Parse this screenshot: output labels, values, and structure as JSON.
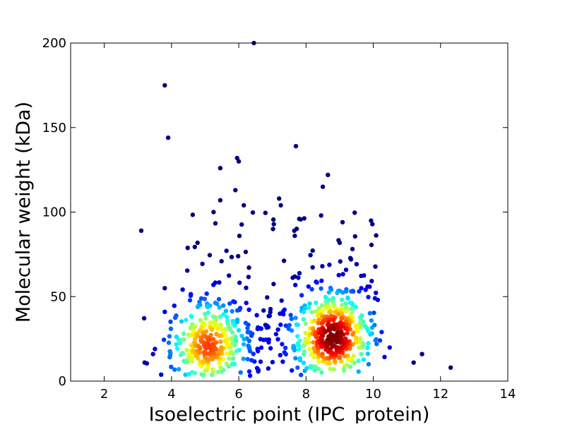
{
  "chart_data": {
    "type": "scatter",
    "xlabel": "Isoelectric point (IPC_protein)",
    "ylabel": "Molecular weight (kDa)",
    "xlim": [
      1,
      14
    ],
    "ylim": [
      0,
      200
    ],
    "x_ticks": [
      "2",
      "4",
      "6",
      "8",
      "10",
      "12",
      "14"
    ],
    "y_ticks": [
      "0",
      "50",
      "100",
      "150",
      "200"
    ],
    "grid": false,
    "legend": "none",
    "color_scale": "jet (point density)",
    "clusters": [
      {
        "center_x": 5.1,
        "center_y": 21,
        "peak_density": 0.8
      },
      {
        "center_x": 8.8,
        "center_y": 26,
        "peak_density": 1.0
      }
    ],
    "outliers": [
      {
        "x": 3.8,
        "y": 175
      },
      {
        "x": 3.9,
        "y": 144
      },
      {
        "x": 3.1,
        "y": 89
      },
      {
        "x": 6.45,
        "y": 200
      },
      {
        "x": 5.95,
        "y": 132
      },
      {
        "x": 6.0,
        "y": 130
      },
      {
        "x": 5.45,
        "y": 126
      },
      {
        "x": 7.7,
        "y": 139
      },
      {
        "x": 8.65,
        "y": 122
      },
      {
        "x": 8.5,
        "y": 115
      },
      {
        "x": 5.9,
        "y": 113
      },
      {
        "x": 7.2,
        "y": 108
      },
      {
        "x": 5.45,
        "y": 107
      },
      {
        "x": 7.25,
        "y": 104
      },
      {
        "x": 6.15,
        "y": 104
      },
      {
        "x": 5.25,
        "y": 100
      },
      {
        "x": 8.45,
        "y": 98
      },
      {
        "x": 7.8,
        "y": 96
      },
      {
        "x": 12.3,
        "y": 8
      },
      {
        "x": 11.45,
        "y": 16
      },
      {
        "x": 11.2,
        "y": 11
      },
      {
        "x": 10.25,
        "y": 29
      },
      {
        "x": 10.05,
        "y": 49
      },
      {
        "x": 3.2,
        "y": 11
      },
      {
        "x": 3.45,
        "y": 16
      },
      {
        "x": 3.8,
        "y": 55
      },
      {
        "x": 3.8,
        "y": 41
      }
    ]
  }
}
